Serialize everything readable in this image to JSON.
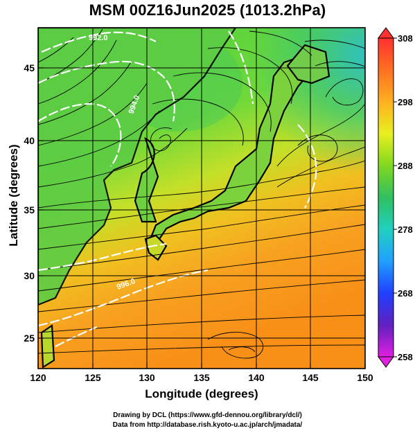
{
  "title": "MSM 00Z16Jun2025 (1013.2hPa)",
  "x_axis": {
    "label": "Longitude (degrees)",
    "ticks": [
      "120",
      "125",
      "130",
      "135",
      "140",
      "145",
      "150"
    ]
  },
  "y_axis": {
    "label": "Latitude  (degrees)",
    "ticks": [
      "25",
      "30",
      "35",
      "40",
      "45"
    ]
  },
  "colorbar": {
    "ticks": [
      "308",
      "298",
      "288",
      "278",
      "268",
      "258"
    ],
    "colors": [
      "#ff3030",
      "#ff7020",
      "#ffa020",
      "#ffd020",
      "#e8f020",
      "#a0e020",
      "#40d030",
      "#20c070",
      "#20d0c0",
      "#20a0ff",
      "#2060ff",
      "#2020c0",
      "#8020c0",
      "#e020e0"
    ]
  },
  "contour_labels": [
    "992.0",
    "994.0",
    "996.0"
  ],
  "credits": {
    "line1": "Drawing by DCL (https://www.gfd-dennou.org/library/dcl/)",
    "line2": "Data from http://database.rish.kyoto-u.ac.jp/arch/jmadata/"
  }
}
